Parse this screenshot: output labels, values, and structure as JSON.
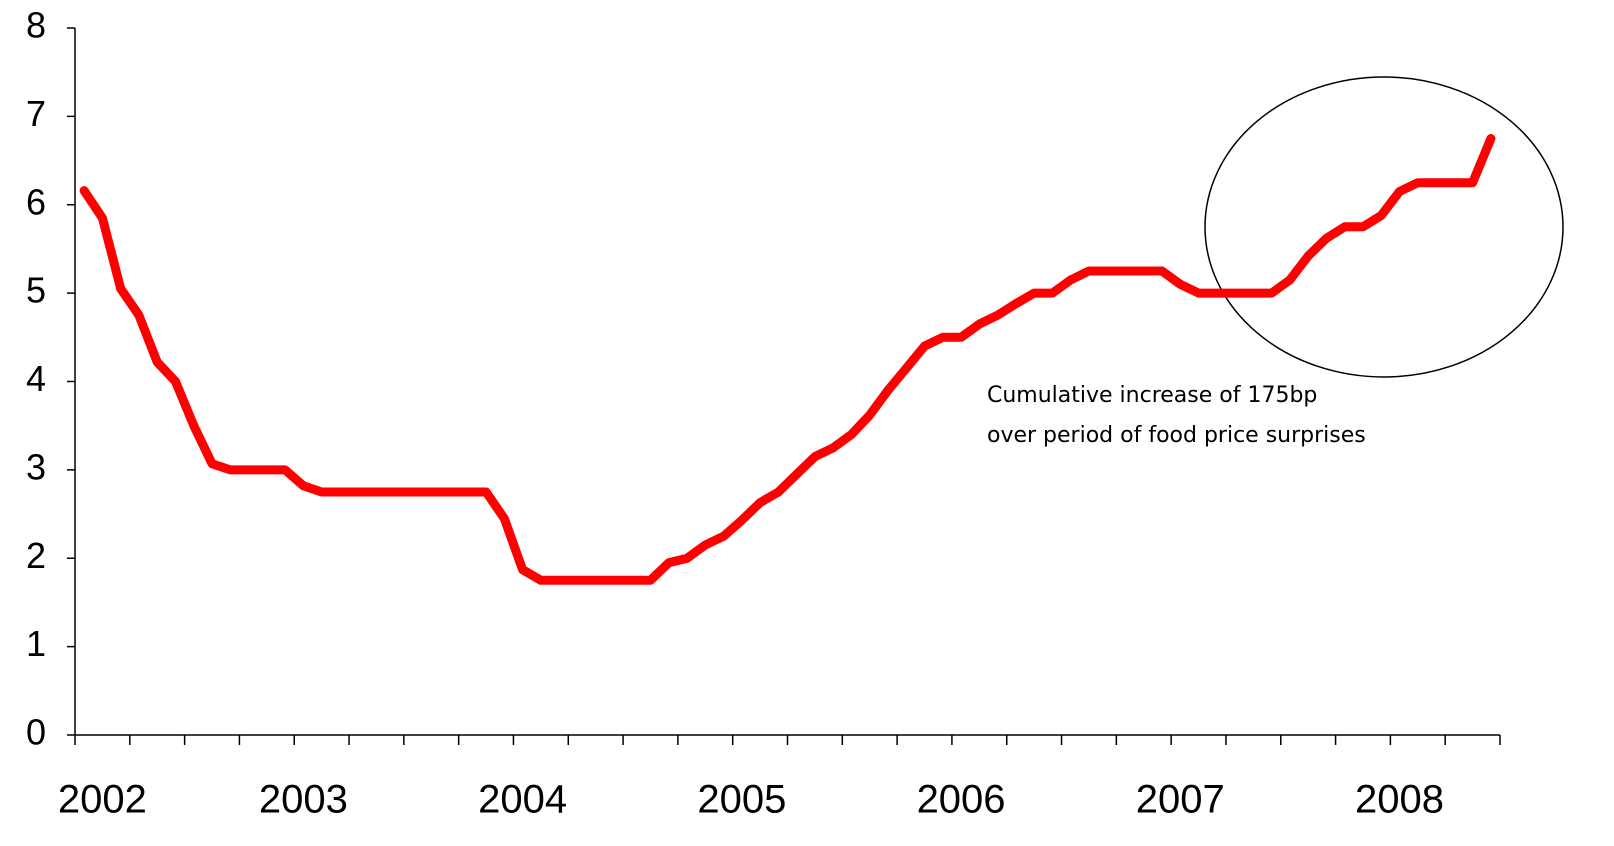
{
  "chart_data": {
    "type": "line",
    "categories": [
      null,
      "2002",
      null,
      null,
      null,
      null,
      null,
      null,
      null,
      null,
      null,
      null,
      "2003",
      null,
      null,
      null,
      null,
      null,
      null,
      null,
      null,
      null,
      null,
      null,
      "2004",
      null,
      null,
      null,
      null,
      null,
      null,
      null,
      null,
      null,
      null,
      null,
      "2005",
      null,
      null,
      null,
      null,
      null,
      null,
      null,
      null,
      null,
      null,
      null,
      "2006",
      null,
      null,
      null,
      null,
      null,
      null,
      null,
      null,
      null,
      null,
      null,
      "2007",
      null,
      null,
      null,
      null,
      null,
      null,
      null,
      null,
      null,
      null,
      null,
      "2008",
      null,
      null,
      null,
      null,
      null
    ],
    "series": [
      {
        "color": "#ff0000",
        "values": [
          6.16,
          5.85,
          5.05,
          4.75,
          4.22,
          4.0,
          3.5,
          3.07,
          3.0,
          3.0,
          3.0,
          3.0,
          2.82,
          2.75,
          2.75,
          2.75,
          2.75,
          2.75,
          2.75,
          2.75,
          2.75,
          2.75,
          2.75,
          2.45,
          1.87,
          1.75,
          1.75,
          1.75,
          1.75,
          1.75,
          1.75,
          1.75,
          1.95,
          2.0,
          2.15,
          2.25,
          2.43,
          2.63,
          2.75,
          2.95,
          3.15,
          3.25,
          3.4,
          3.62,
          3.9,
          4.15,
          4.4,
          4.5,
          4.5,
          4.65,
          4.75,
          4.88,
          5.0,
          5.0,
          5.15,
          5.25,
          5.25,
          5.25,
          5.25,
          5.25,
          5.1,
          5.0,
          5.0,
          5.0,
          5.0,
          5.0,
          5.15,
          5.42,
          5.62,
          5.75,
          5.75,
          5.88,
          6.15,
          6.25,
          6.25,
          6.25,
          6.25,
          6.75
        ]
      }
    ],
    "ylim": [
      0,
      8
    ],
    "yticks": [
      0,
      1,
      2,
      3,
      4,
      5,
      6,
      7,
      8
    ],
    "annotation": [
      "Cumulative increase of 175bp",
      "over period of food price surprises"
    ]
  }
}
